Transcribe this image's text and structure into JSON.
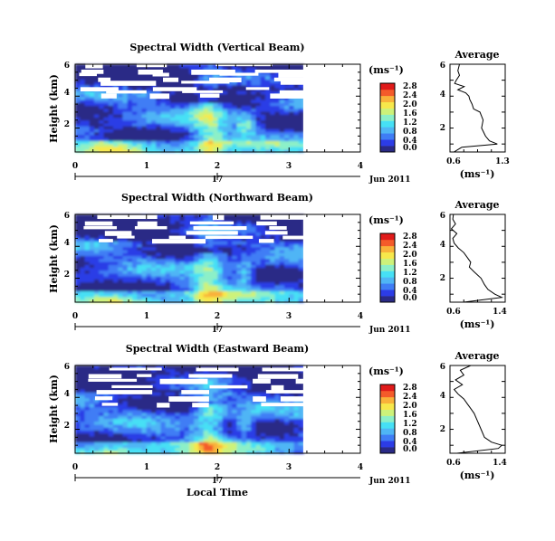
{
  "figure": {
    "xlabel": "Local Time",
    "date_label": "Jun 2011",
    "day_label": "17",
    "colorbar_unit": "(ms⁻¹)",
    "colorbar_ticks": [
      "0.0",
      "0.4",
      "0.8",
      "1.2",
      "1.6",
      "2.0",
      "2.4",
      "2.8"
    ],
    "colorbar_colors": [
      "#2a2a86",
      "#2c3ce6",
      "#3f7df5",
      "#4fb5f5",
      "#46e0f5",
      "#8cf0c8",
      "#cdf27a",
      "#f7e84b",
      "#f9b23a",
      "#f45b2a",
      "#e01a1a"
    ],
    "avg_title": "Average",
    "avg_xlabel": "(ms⁻¹)"
  },
  "chart_data": [
    {
      "type": "heatmap",
      "title": "Spectral Width (Vertical Beam)",
      "xlabel": "Local Time",
      "ylabel": "Height (km)",
      "xlim": [
        0,
        4
      ],
      "ylim": [
        0.5,
        6
      ],
      "x_ticks": [
        "0",
        "1",
        "2",
        "3",
        "4"
      ],
      "y_ticks": [
        "2",
        "4",
        "6"
      ],
      "data_end_time": 3.2,
      "value_range": [
        0.0,
        2.8
      ],
      "gap_heights_km": [
        5.95,
        5.55,
        5.35,
        5.05,
        4.85,
        4.45,
        4.25,
        4.05
      ],
      "average_profile": {
        "title": "Average",
        "xlabel": "(ms⁻¹)",
        "xlim": [
          0.6,
          1.3
        ],
        "x_ticks": [
          "0.6",
          "1.3"
        ],
        "y_ticks": [
          "2",
          "4",
          "6"
        ],
        "height_km": [
          0.5,
          0.8,
          1.0,
          1.2,
          1.5,
          2.0,
          2.5,
          3.0,
          3.2,
          3.5,
          3.8,
          4.0,
          4.2,
          4.4,
          4.6,
          4.8,
          5.0,
          5.3,
          5.6,
          6.0
        ],
        "width_ms": [
          0.65,
          0.75,
          1.2,
          1.1,
          1.05,
          1.0,
          1.02,
          0.98,
          0.9,
          0.88,
          0.85,
          0.84,
          0.8,
          0.7,
          0.78,
          0.66,
          0.68,
          0.72,
          0.7,
          0.72
        ]
      }
    },
    {
      "type": "heatmap",
      "title": "Spectral Width (Northward Beam)",
      "xlabel": "Local Time",
      "ylabel": "Height (km)",
      "xlim": [
        0,
        4
      ],
      "ylim": [
        0.5,
        6
      ],
      "x_ticks": [
        "0",
        "1",
        "2",
        "3",
        "4"
      ],
      "y_ticks": [
        "2",
        "4",
        "6"
      ],
      "data_end_time": 3.2,
      "value_range": [
        0.0,
        2.8
      ],
      "gap_heights_km": [
        5.85,
        5.45,
        5.15,
        4.85,
        4.55,
        4.35
      ],
      "average_profile": {
        "title": "Average",
        "xlabel": "(ms⁻¹)",
        "xlim": [
          0.6,
          1.4
        ],
        "x_ticks": [
          "0.6",
          "1.4"
        ],
        "y_ticks": [
          "2",
          "4",
          "6"
        ],
        "height_km": [
          0.5,
          0.8,
          1.0,
          1.3,
          1.6,
          2.0,
          2.4,
          2.7,
          3.0,
          3.3,
          3.6,
          3.9,
          4.2,
          4.5,
          4.8,
          5.1,
          5.4,
          5.7,
          6.0
        ],
        "width_ms": [
          0.8,
          1.35,
          1.25,
          1.15,
          1.1,
          1.05,
          0.95,
          0.88,
          0.9,
          0.85,
          0.8,
          0.72,
          0.66,
          0.64,
          0.7,
          0.62,
          0.68,
          0.64,
          0.65
        ]
      }
    },
    {
      "type": "heatmap",
      "title": "Spectral Width (Eastward Beam)",
      "xlabel": "Local Time",
      "ylabel": "Height (km)",
      "xlim": [
        0,
        4
      ],
      "ylim": [
        0.5,
        6
      ],
      "x_ticks": [
        "0",
        "1",
        "2",
        "3",
        "4"
      ],
      "y_ticks": [
        "2",
        "4",
        "6"
      ],
      "data_end_time": 3.2,
      "value_range": [
        0.0,
        2.8
      ],
      "gap_heights_km": [
        5.75,
        5.35,
        5.05,
        4.65,
        4.35,
        3.95,
        3.55
      ],
      "average_profile": {
        "title": "Average",
        "xlabel": "(ms⁻¹)",
        "xlim": [
          0.6,
          1.4
        ],
        "x_ticks": [
          "0.6",
          "1.4"
        ],
        "y_ticks": [
          "2",
          "4",
          "6"
        ],
        "height_km": [
          0.5,
          0.8,
          1.0,
          1.2,
          1.5,
          2.0,
          2.5,
          3.0,
          3.3,
          3.6,
          3.9,
          4.2,
          4.5,
          4.8,
          5.1,
          5.4,
          5.7,
          6.0
        ],
        "width_ms": [
          0.7,
          1.3,
          1.35,
          1.2,
          1.1,
          1.05,
          1.0,
          0.95,
          0.9,
          0.85,
          0.8,
          0.72,
          0.66,
          0.78,
          0.68,
          0.8,
          0.75,
          0.9
        ]
      }
    }
  ]
}
